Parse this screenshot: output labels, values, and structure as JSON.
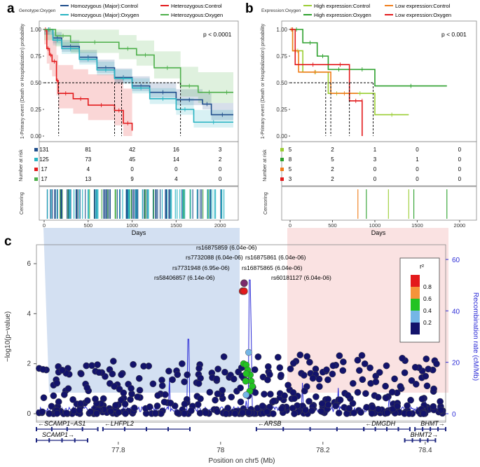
{
  "colors": {
    "homo_ctrl": "#1f4e8c",
    "homo_oxy": "#27b3c2",
    "het_ctrl": "#e31a1c",
    "het_oxy": "#4daf4a",
    "high_ctrl": "#9acd32",
    "high_oxy": "#2ca02c",
    "low_ctrl": "#f07d1a",
    "low_oxy": "#e31a1c",
    "recomb": "#2b2bd6",
    "navy": "#13136b"
  },
  "chart_data": [
    {
      "type": "line",
      "panel": "a",
      "title": "Genotype:Oxygen",
      "legend": [
        "Homozygous (Major):Control",
        "Heterozygous:Control",
        "Homozygous (Major):Oxygen",
        "Heterozygous:Oxygen"
      ],
      "ylabel": "1-Primary event (Death or Hospitalization) probability",
      "yticks": [
        "1.00",
        "0.75",
        "0.50",
        "0.25",
        "0.00"
      ],
      "xlim": [
        0,
        2150
      ],
      "ylim": [
        0,
        1
      ],
      "pvalue": "p < 0.0001",
      "series": [
        {
          "name": "Homozygous (Major):Control",
          "x": [
            0,
            100,
            200,
            400,
            600,
            800,
            1000,
            1200,
            1500,
            1800,
            1900,
            2150
          ],
          "y": [
            1.0,
            0.92,
            0.84,
            0.74,
            0.64,
            0.55,
            0.47,
            0.41,
            0.34,
            0.3,
            0.2,
            0.2
          ]
        },
        {
          "name": "Homozygous (Major):Oxygen",
          "x": [
            0,
            100,
            200,
            400,
            600,
            800,
            1000,
            1200,
            1500,
            1700,
            2150
          ],
          "y": [
            1.0,
            0.9,
            0.82,
            0.72,
            0.62,
            0.54,
            0.45,
            0.35,
            0.25,
            0.13,
            0.13
          ]
        },
        {
          "name": "Heterozygous:Control",
          "x": [
            0,
            30,
            60,
            90,
            140,
            160,
            330,
            500,
            800,
            900,
            1000
          ],
          "y": [
            1.0,
            0.82,
            0.76,
            0.7,
            0.52,
            0.4,
            0.35,
            0.29,
            0.24,
            0.12,
            0.05
          ]
        },
        {
          "name": "Heterozygous:Oxygen",
          "x": [
            0,
            130,
            300,
            850,
            1050,
            1250,
            1550,
            1750,
            2000,
            2150
          ],
          "y": [
            1.0,
            0.94,
            0.88,
            0.82,
            0.76,
            0.64,
            0.47,
            0.41,
            0.41,
            0.41
          ]
        }
      ],
      "median_x": [
        165,
        800,
        880,
        1550
      ],
      "risk_table": {
        "label": "Number at risk",
        "times": [
          "0",
          "500",
          "1000",
          "1500",
          "2000"
        ],
        "rows": [
          [
            "131",
            "81",
            "42",
            "16",
            "3"
          ],
          [
            "125",
            "73",
            "45",
            "14",
            "2"
          ],
          [
            "17",
            "4",
            "0",
            "0",
            "0"
          ],
          [
            "17",
            "13",
            "9",
            "4",
            "0"
          ]
        ]
      },
      "censoring_label": "Censoring",
      "xticks": [
        "0",
        "500",
        "1000",
        "1500",
        "2000"
      ],
      "xlabel": "Days"
    },
    {
      "type": "line",
      "panel": "b",
      "title": "Expression:Oxygen",
      "legend": [
        "High expression:Control",
        "Low expression:Control",
        "High expression:Oxygen",
        "Low expression:Oxygen"
      ],
      "ylabel": "1-Primary event (Death or Hospitalization) probability",
      "yticks": [
        "1.00",
        "0.75",
        "0.50",
        "0.25",
        "0.00"
      ],
      "xlim": [
        0,
        2100
      ],
      "ylim": [
        0,
        1
      ],
      "pvalue": "p < 0.001",
      "series": [
        {
          "name": "High expression:Control",
          "x": [
            0,
            30,
            150,
            450,
            650,
            1000,
            1400
          ],
          "y": [
            1.0,
            0.8,
            0.6,
            0.4,
            0.4,
            0.2,
            0.2
          ]
        },
        {
          "name": "High expression:Oxygen",
          "x": [
            0,
            150,
            320,
            450,
            700,
            1000,
            1850
          ],
          "y": [
            1.0,
            0.875,
            0.75,
            0.625,
            0.625,
            0.47,
            0.47
          ]
        },
        {
          "name": "Low expression:Control",
          "x": [
            0,
            30,
            100,
            480,
            800
          ],
          "y": [
            1.0,
            0.8,
            0.6,
            0.4,
            0.4
          ]
        },
        {
          "name": "Low expression:Oxygen",
          "x": [
            0,
            60,
            480,
            700,
            850,
            850
          ],
          "y": [
            1.0,
            0.67,
            0.67,
            0.33,
            0.33,
            0.0
          ]
        }
      ],
      "median_x": [
        420,
        480,
        700,
        980
      ],
      "risk_table": {
        "label": "Number at risk",
        "times": [
          "0",
          "500",
          "1000",
          "1500",
          "2000"
        ],
        "rows": [
          [
            "5",
            "2",
            "1",
            "0",
            "0"
          ],
          [
            "8",
            "5",
            "3",
            "1",
            "0"
          ],
          [
            "5",
            "2",
            "0",
            "0",
            "0"
          ],
          [
            "3",
            "2",
            "0",
            "0",
            "0"
          ]
        ]
      },
      "censoring_label": "Censoring",
      "xticks": [
        "0",
        "500",
        "1000",
        "1500",
        "2000"
      ],
      "xlabel": "Days"
    },
    {
      "type": "scatter",
      "panel": "c",
      "xlabel": "Position on chr5 (Mb)",
      "ylabel": "−log10(p−value)",
      "y2label": "Recombination rate (cM/Mb)",
      "xticks": [
        "77.8",
        "78",
        "78.2",
        "78.4"
      ],
      "yticks": [
        "0",
        "2",
        "4",
        "6"
      ],
      "y2ticks": [
        "0",
        "20",
        "40",
        "60"
      ],
      "xlim": [
        77.64,
        78.44
      ],
      "ylim": [
        -0.2,
        6.8
      ],
      "y2lim": [
        -2,
        68
      ],
      "legend_title": "r²",
      "legend_ticks": [
        "0.8",
        "0.6",
        "0.4",
        "0.2"
      ],
      "legend_colors": [
        "#e31a1c",
        "#f5943a",
        "#22c322",
        "#74b6e6",
        "#13136b"
      ],
      "annotations": [
        "rs16875859 (6.04e-06)",
        "rs7732088 (6.04e-06)",
        "rs7731948 (6.95e-06)",
        "rs58406857 (6.14e-06)",
        "rs16875861 (6.04e-06)",
        "rs16875865 (6.04e-06)",
        "rs60181127 (6.04e-06)"
      ],
      "lead_points": [
        {
          "x": 78.046,
          "y": 5.22,
          "r2": "lead"
        },
        {
          "x": 78.043,
          "y": 4.9,
          "r2": 0.9
        },
        {
          "x": 78.046,
          "y": 4.9,
          "r2": 0.9
        }
      ],
      "mid_points": [
        {
          "x": 78.045,
          "y": 2.0,
          "r2": 0.5
        },
        {
          "x": 78.05,
          "y": 1.95,
          "r2": 0.5
        },
        {
          "x": 78.053,
          "y": 1.75,
          "r2": 0.5
        },
        {
          "x": 78.058,
          "y": 1.55,
          "r2": 0.5
        },
        {
          "x": 78.06,
          "y": 1.3,
          "r2": 0.5
        },
        {
          "x": 78.062,
          "y": 1.1,
          "r2": 0.5
        },
        {
          "x": 78.057,
          "y": 0.9,
          "r2": 0.5
        },
        {
          "x": 78.05,
          "y": 1.6,
          "r2": 0.5
        },
        {
          "x": 78.049,
          "y": 1.3,
          "r2": 0.4
        },
        {
          "x": 78.05,
          "y": 0.75,
          "r2": 0.2
        },
        {
          "x": 78.055,
          "y": 2.45,
          "r2": 0.2
        }
      ],
      "recomb_peaks": [
        {
          "x": 77.795,
          "cm": 4
        },
        {
          "x": 77.9,
          "cm": 14
        },
        {
          "x": 77.937,
          "cm": 29
        },
        {
          "x": 78.05,
          "cm": 5
        },
        {
          "x": 78.057,
          "cm": 52
        },
        {
          "x": 78.06,
          "cm": 30
        },
        {
          "x": 78.1,
          "cm": 4
        },
        {
          "x": 78.16,
          "cm": 12
        },
        {
          "x": 78.23,
          "cm": 10
        },
        {
          "x": 78.33,
          "cm": 8
        },
        {
          "x": 78.4,
          "cm": 6
        }
      ],
      "genes": [
        {
          "name": "SCAMP1−AS1",
          "strand": "←",
          "start": 77.64,
          "end": 77.76,
          "row": 1
        },
        {
          "name": "LHFPL2",
          "strand": "←",
          "start": 77.77,
          "end": 77.94,
          "row": 1
        },
        {
          "name": "ARSB",
          "strand": "←",
          "start": 78.07,
          "end": 78.28,
          "row": 1
        },
        {
          "name": "DMGDH",
          "strand": "←",
          "start": 78.28,
          "end": 78.37,
          "row": 1
        },
        {
          "name": "BHMT",
          "strand": "→",
          "start": 78.38,
          "end": 78.44,
          "row": 1
        },
        {
          "name": "SCAMP1",
          "strand": "→",
          "start": 77.64,
          "end": 77.74,
          "row": 2
        },
        {
          "name": "BHMT2",
          "strand": "→",
          "start": 78.36,
          "end": 78.42,
          "row": 2
        }
      ]
    }
  ],
  "labels": {
    "a": "a",
    "b": "b",
    "c": "c"
  }
}
